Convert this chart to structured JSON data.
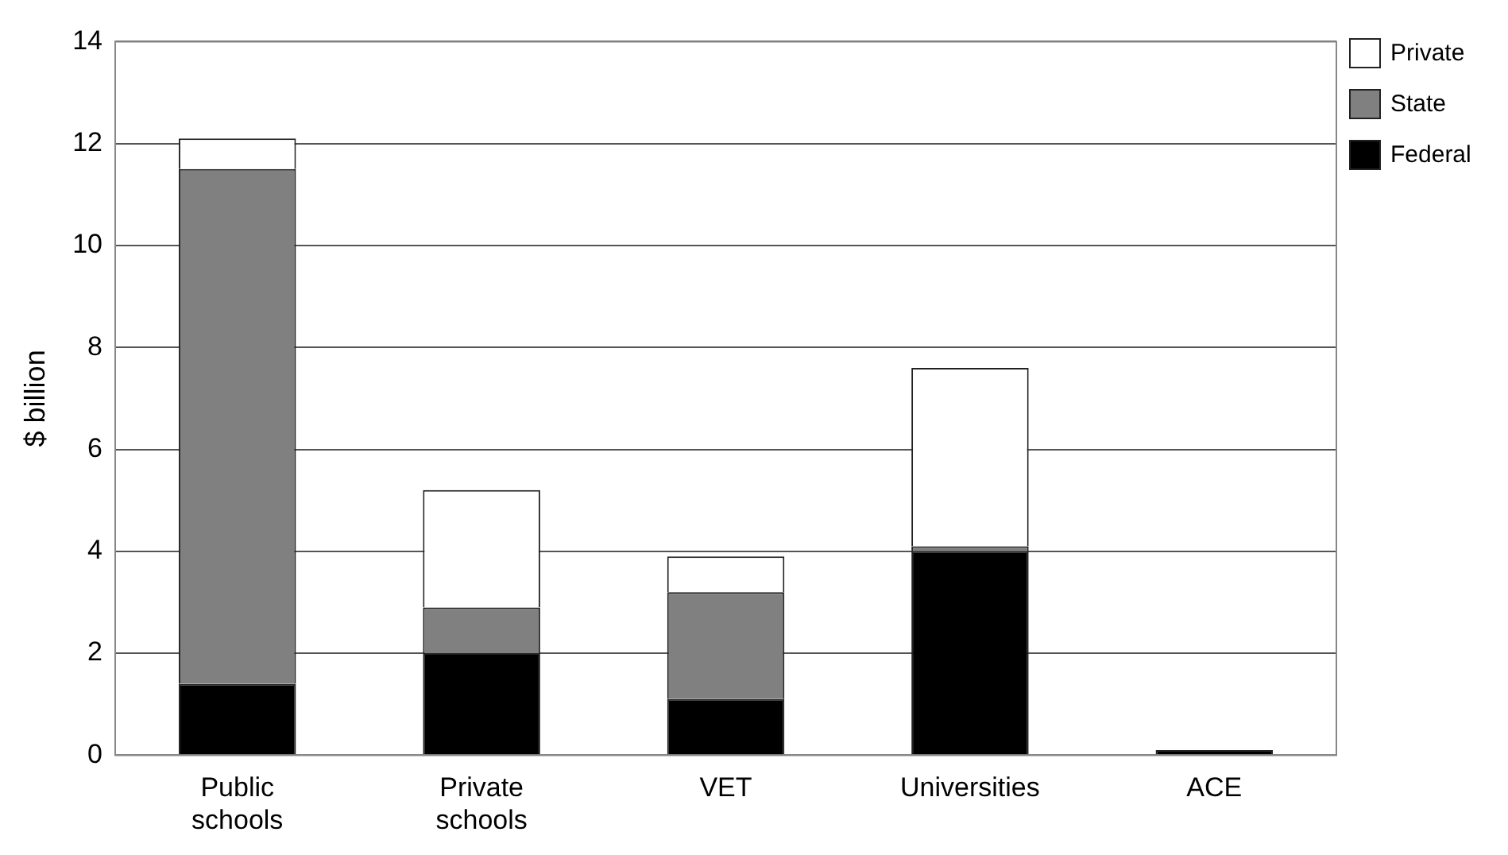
{
  "chart_data": {
    "type": "bar",
    "stacked": true,
    "ylabel": "$ billion",
    "categories": [
      "Public schools",
      "Private schools",
      "VET",
      "Universities",
      "ACE"
    ],
    "series": [
      {
        "name": "Federal",
        "color": "#000000",
        "values": [
          1.4,
          2.0,
          1.1,
          4.0,
          0.1
        ]
      },
      {
        "name": "State",
        "color": "#808080",
        "values": [
          10.1,
          0.9,
          2.1,
          0.1,
          null
        ]
      },
      {
        "name": "Private",
        "color": "#ffffff",
        "values": [
          0.6,
          2.3,
          0.7,
          3.5,
          null
        ]
      }
    ],
    "ylim": [
      0,
      14
    ],
    "yticks": [
      0,
      2,
      4,
      6,
      8,
      10,
      12,
      14
    ],
    "grid": "y",
    "legend": "top right"
  }
}
